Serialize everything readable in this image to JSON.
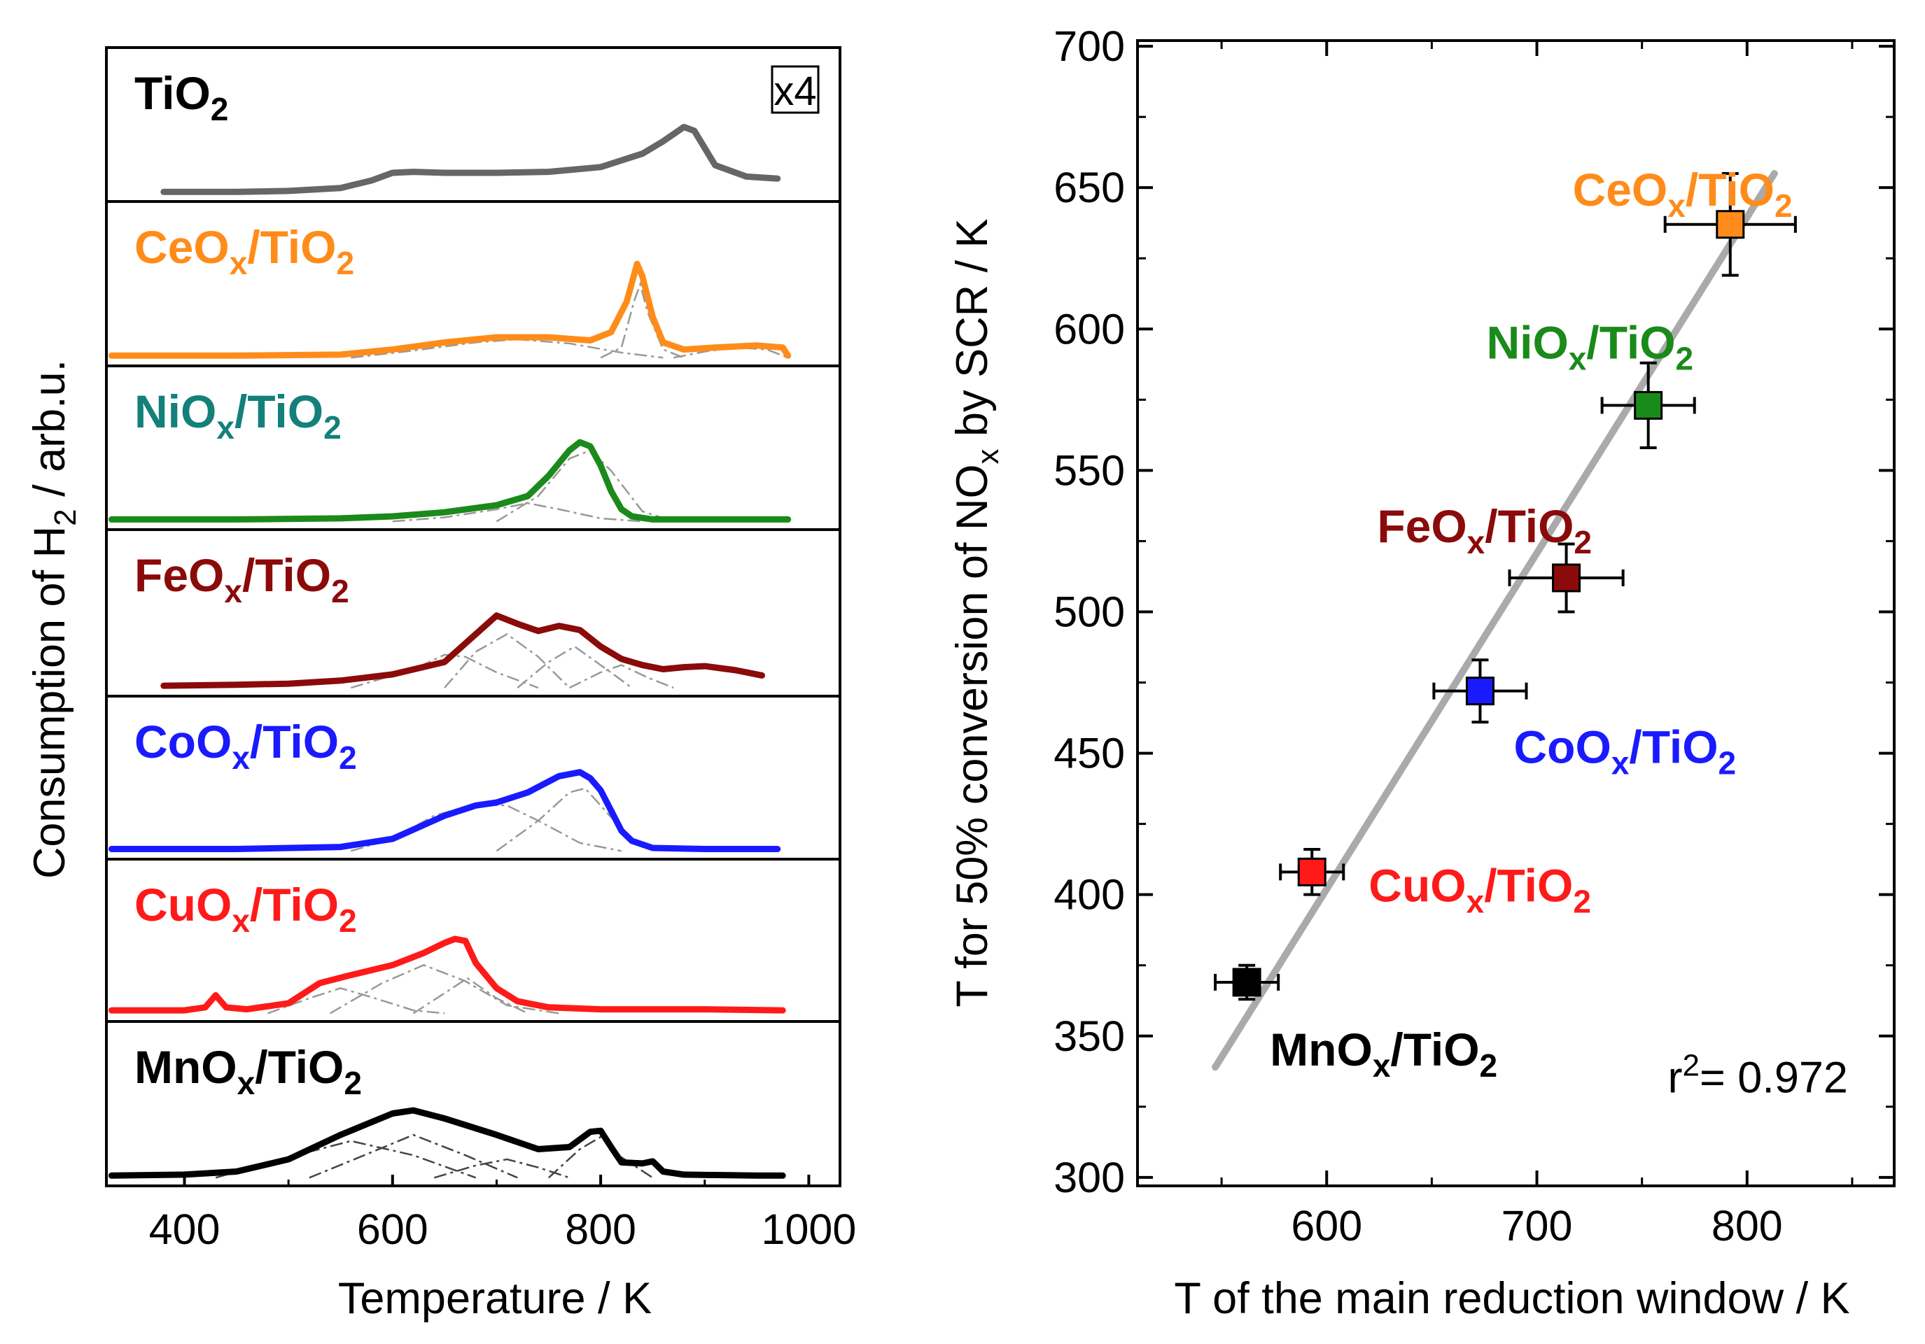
{
  "chart_data": [
    {
      "type": "line",
      "panel": "left",
      "title": "",
      "xlabel": "Temperature / K",
      "ylabel": "Consumption of H2 / arb.u.",
      "ylabel_parts": {
        "pre": "Consumption of H",
        "sub": "2",
        "post": " / arb.u."
      },
      "xlim": [
        325,
        1030
      ],
      "xticks": [
        400,
        600,
        800,
        1000
      ],
      "xtick_labels": [
        "400",
        "600",
        "800",
        "1000"
      ],
      "yticks_visible": false,
      "note_label": "x4",
      "series": [
        {
          "name": "TiO2",
          "label_base": "TiO",
          "label_sub": "",
          "label_after": "2",
          "color": "#666666",
          "x": [
            380,
            450,
            500,
            550,
            580,
            600,
            620,
            650,
            700,
            750,
            800,
            840,
            860,
            880,
            890,
            910,
            940,
            970
          ],
          "y": [
            0.02,
            0.02,
            0.03,
            0.06,
            0.14,
            0.22,
            0.23,
            0.22,
            0.22,
            0.23,
            0.28,
            0.42,
            0.55,
            0.7,
            0.66,
            0.3,
            0.18,
            0.16
          ],
          "components": []
        },
        {
          "name": "CeOx/TiO2",
          "label_base": "CeO",
          "label_sub": "x",
          "label_after": "/TiO2",
          "color": "#ff8c1a",
          "x": [
            330,
            450,
            550,
            600,
            650,
            700,
            750,
            790,
            810,
            825,
            835,
            840,
            850,
            860,
            880,
            910,
            950,
            975,
            980
          ],
          "y": [
            0.02,
            0.02,
            0.03,
            0.08,
            0.15,
            0.2,
            0.2,
            0.17,
            0.25,
            0.55,
            0.92,
            0.8,
            0.4,
            0.15,
            0.08,
            0.1,
            0.12,
            0.1,
            0.02
          ],
          "components": [
            {
              "x": [
                560,
                620,
                680,
                720,
                770,
                820,
                860
              ],
              "y": [
                0.0,
                0.07,
                0.15,
                0.18,
                0.14,
                0.05,
                0.0
              ]
            },
            {
              "x": [
                800,
                820,
                832,
                838,
                845,
                860,
                880
              ],
              "y": [
                0.0,
                0.1,
                0.55,
                0.72,
                0.45,
                0.08,
                0.0
              ]
            },
            {
              "x": [
                870,
                900,
                930,
                960,
                980
              ],
              "y": [
                0.0,
                0.06,
                0.1,
                0.08,
                0.0
              ]
            }
          ]
        },
        {
          "name": "NiOx/TiO2",
          "label_base": "NiO",
          "label_sub": "x",
          "label_after": "/TiO2",
          "color": "#1a8a1a",
          "label_color": "#13807a",
          "x": [
            330,
            450,
            550,
            600,
            650,
            700,
            730,
            750,
            770,
            780,
            790,
            800,
            810,
            820,
            830,
            850,
            900,
            980
          ],
          "y": [
            0.02,
            0.02,
            0.03,
            0.05,
            0.09,
            0.16,
            0.25,
            0.45,
            0.7,
            0.78,
            0.74,
            0.55,
            0.3,
            0.12,
            0.05,
            0.02,
            0.02,
            0.02
          ],
          "components": [
            {
              "x": [
                600,
                650,
                700,
                730,
                760,
                800,
                840
              ],
              "y": [
                0.0,
                0.04,
                0.12,
                0.18,
                0.12,
                0.03,
                0.0
              ]
            },
            {
              "x": [
                700,
                740,
                770,
                790,
                810,
                840,
                870
              ],
              "y": [
                0.0,
                0.25,
                0.62,
                0.7,
                0.5,
                0.1,
                0.0
              ]
            }
          ]
        },
        {
          "name": "FeOx/TiO2",
          "label_base": "FeO",
          "label_sub": "x",
          "label_after": "/TiO2",
          "color": "#8b0a0a",
          "x": [
            380,
            450,
            500,
            550,
            600,
            650,
            680,
            700,
            720,
            740,
            760,
            780,
            800,
            820,
            840,
            860,
            880,
            900,
            930,
            955
          ],
          "y": [
            0.02,
            0.03,
            0.04,
            0.07,
            0.13,
            0.25,
            0.52,
            0.7,
            0.62,
            0.55,
            0.6,
            0.56,
            0.4,
            0.28,
            0.22,
            0.18,
            0.2,
            0.21,
            0.17,
            0.12
          ],
          "components": [
            {
              "x": [
                560,
                620,
                650,
                670,
                700,
                740
              ],
              "y": [
                0.0,
                0.18,
                0.32,
                0.3,
                0.15,
                0.0
              ]
            },
            {
              "x": [
                650,
                680,
                710,
                740,
                770
              ],
              "y": [
                0.0,
                0.35,
                0.52,
                0.3,
                0.0
              ]
            },
            {
              "x": [
                720,
                750,
                775,
                800,
                830
              ],
              "y": [
                0.0,
                0.25,
                0.4,
                0.22,
                0.0
              ]
            },
            {
              "x": [
                770,
                800,
                820,
                845,
                870
              ],
              "y": [
                0.0,
                0.15,
                0.22,
                0.1,
                0.0
              ]
            }
          ]
        },
        {
          "name": "CoOx/TiO2",
          "label_base": "CoO",
          "label_sub": "x",
          "label_after": "/TiO2",
          "color": "#1a1aff",
          "x": [
            330,
            450,
            550,
            600,
            650,
            680,
            700,
            730,
            760,
            780,
            790,
            800,
            810,
            820,
            830,
            850,
            900,
            970
          ],
          "y": [
            0.02,
            0.02,
            0.04,
            0.12,
            0.35,
            0.45,
            0.48,
            0.58,
            0.74,
            0.78,
            0.72,
            0.6,
            0.4,
            0.2,
            0.1,
            0.03,
            0.02,
            0.02
          ],
          "components": [
            {
              "x": [
                560,
                600,
                640,
                680,
                710,
                740,
                780,
                820
              ],
              "y": [
                0.0,
                0.12,
                0.35,
                0.46,
                0.45,
                0.3,
                0.08,
                0.0
              ]
            },
            {
              "x": [
                700,
                740,
                770,
                785,
                800,
                830,
                860
              ],
              "y": [
                0.0,
                0.3,
                0.58,
                0.62,
                0.45,
                0.1,
                0.0
              ]
            }
          ]
        },
        {
          "name": "CuOx/TiO2",
          "label_base": "CuO",
          "label_sub": "x",
          "label_after": "/TiO2",
          "color": "#ff1a1a",
          "x": [
            330,
            400,
            420,
            430,
            440,
            460,
            500,
            530,
            560,
            600,
            630,
            650,
            660,
            670,
            680,
            700,
            720,
            750,
            800,
            900,
            975
          ],
          "y": [
            0.03,
            0.03,
            0.06,
            0.18,
            0.06,
            0.04,
            0.1,
            0.3,
            0.38,
            0.48,
            0.6,
            0.7,
            0.74,
            0.72,
            0.5,
            0.25,
            0.12,
            0.06,
            0.04,
            0.04,
            0.03
          ],
          "components": [
            {
              "x": [
                480,
                520,
                550,
                580,
                620,
                650
              ],
              "y": [
                0.0,
                0.15,
                0.25,
                0.16,
                0.03,
                0.0
              ]
            },
            {
              "x": [
                540,
                590,
                630,
                670,
                710,
                760
              ],
              "y": [
                0.0,
                0.3,
                0.48,
                0.32,
                0.08,
                0.0
              ]
            },
            {
              "x": [
                620,
                650,
                672,
                700,
                730
              ],
              "y": [
                0.0,
                0.2,
                0.35,
                0.15,
                0.0
              ]
            }
          ]
        },
        {
          "name": "MnOx/TiO2",
          "label_base": "MnO",
          "label_sub": "x",
          "label_after": "/TiO2",
          "color": "#000000",
          "x": [
            330,
            400,
            450,
            500,
            550,
            600,
            620,
            650,
            700,
            740,
            770,
            790,
            800,
            810,
            820,
            840,
            850,
            860,
            880,
            950,
            975
          ],
          "y": [
            0.02,
            0.03,
            0.06,
            0.18,
            0.42,
            0.63,
            0.66,
            0.58,
            0.42,
            0.28,
            0.3,
            0.45,
            0.46,
            0.3,
            0.15,
            0.14,
            0.16,
            0.06,
            0.03,
            0.02,
            0.02
          ],
          "components": [
            {
              "x": [
                430,
                500,
                560,
                620,
                680
              ],
              "y": [
                0.0,
                0.2,
                0.36,
                0.22,
                0.0
              ]
            },
            {
              "x": [
                520,
                580,
                620,
                670,
                720
              ],
              "y": [
                0.0,
                0.25,
                0.42,
                0.22,
                0.0
              ]
            },
            {
              "x": [
                640,
                680,
                710,
                740,
                770
              ],
              "y": [
                0.0,
                0.12,
                0.18,
                0.1,
                0.0
              ]
            },
            {
              "x": [
                750,
                780,
                800,
                820,
                850
              ],
              "y": [
                0.0,
                0.28,
                0.4,
                0.2,
                0.0
              ]
            }
          ]
        }
      ]
    },
    {
      "type": "scatter",
      "panel": "right",
      "title": "",
      "xlabel": "T of the main reduction window / K",
      "ylabel": "T for 50% conversion of NOx by SCR / K",
      "ylabel_parts": {
        "pre": "T for 50% conversion of NO",
        "sub": "x",
        "post": " by SCR / K"
      },
      "xlim": [
        510,
        870
      ],
      "ylim": [
        297,
        702
      ],
      "xticks": [
        600,
        700,
        800
      ],
      "xtick_labels": [
        "600",
        "700",
        "800"
      ],
      "yticks": [
        300,
        350,
        400,
        450,
        500,
        550,
        600,
        650,
        700
      ],
      "ytick_labels": [
        "300",
        "350",
        "400",
        "450",
        "500",
        "550",
        "600",
        "650",
        "700"
      ],
      "points": [
        {
          "name": "MnOx/TiO2",
          "label_base": "MnO",
          "label_sub": "x",
          "label_after": "/TiO2",
          "x": 562,
          "y": 369,
          "xerr": 15,
          "yerr": 6,
          "color": "#000000",
          "label_x": 573,
          "label_y": 345
        },
        {
          "name": "CuOx/TiO2",
          "label_base": "CuO",
          "label_sub": "x",
          "label_after": "/TiO2",
          "x": 593,
          "y": 408,
          "xerr": 15,
          "yerr": 8,
          "color": "#ff1a1a",
          "label_x": 620,
          "label_y": 403
        },
        {
          "name": "CoOx/TiO2",
          "label_base": "CoO",
          "label_sub": "x",
          "label_after": "/TiO2",
          "x": 673,
          "y": 472,
          "xerr": 22,
          "yerr": 11,
          "color": "#1a1aff",
          "label_x": 689,
          "label_y": 452
        },
        {
          "name": "FeOx/TiO2",
          "label_base": "FeO",
          "label_sub": "x",
          "label_after": "/TiO2",
          "x": 714,
          "y": 512,
          "xerr": 27,
          "yerr": 12,
          "color": "#8b0a0a",
          "label_x": 624,
          "label_y": 530
        },
        {
          "name": "NiOx/TiO2",
          "label_base": "NiO",
          "label_sub": "x",
          "label_after": "/TiO2",
          "x": 753,
          "y": 573,
          "xerr": 22,
          "yerr": 15,
          "color": "#1a8a1a",
          "label_x": 676,
          "label_y": 595
        },
        {
          "name": "CeOx/TiO2",
          "label_base": "CeO",
          "label_sub": "x",
          "label_after": "/TiO2",
          "x": 792,
          "y": 637,
          "xerr": 31,
          "yerr": 18,
          "color": "#ff8c1a",
          "label_x": 717,
          "label_y": 649
        }
      ],
      "fit_line": {
        "x": [
          547,
          813
        ],
        "y": [
          339,
          655
        ],
        "color": "#aaaaaa"
      },
      "annotation": {
        "pre": "r",
        "sup": "2",
        "post": "= 0.972",
        "x": 848,
        "y": 330
      }
    }
  ]
}
